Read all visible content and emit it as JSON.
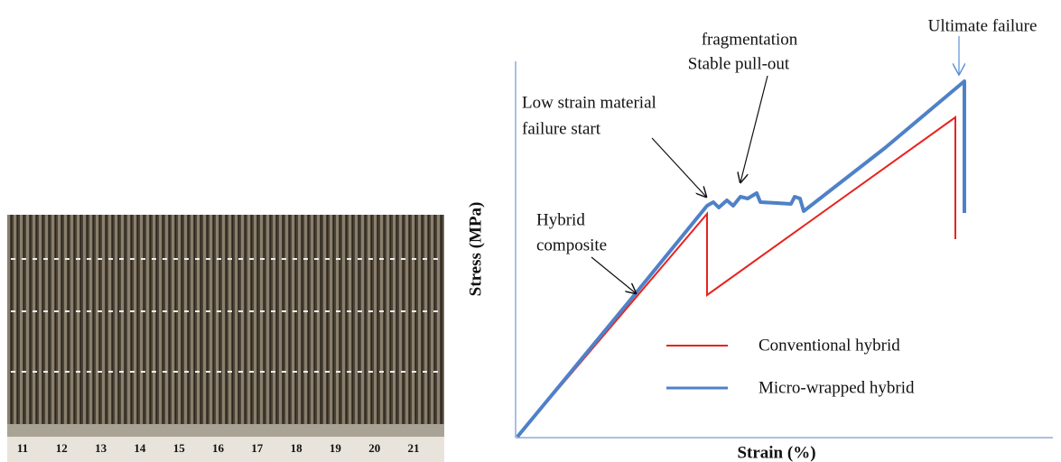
{
  "photo": {
    "ruler_labels": [
      "11",
      "12",
      "13",
      "14",
      "15",
      "16",
      "17",
      "18",
      "19",
      "20",
      "21"
    ]
  },
  "chart": {
    "y_axis_label": "Stress (MPa)",
    "x_axis_label": "Strain (%)",
    "annotations": {
      "ultimate": "Ultimate failure",
      "fragmentation": "fragmentation",
      "pullout": "Stable pull-out",
      "low_strain_1": "Low strain material",
      "low_strain_2": "failure start",
      "hybrid_1": "Hybrid",
      "hybrid_2": "composite"
    },
    "legend": [
      "Conventional hybrid",
      "Micro-wrapped hybrid"
    ]
  }
}
